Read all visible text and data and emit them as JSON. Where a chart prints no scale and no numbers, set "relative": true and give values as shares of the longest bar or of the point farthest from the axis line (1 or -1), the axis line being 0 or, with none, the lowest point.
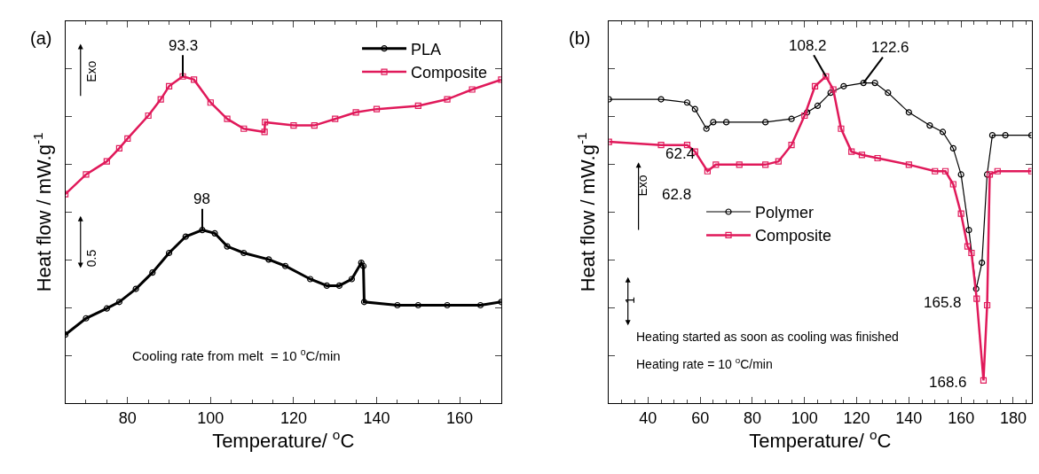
{
  "chart_data": [
    {
      "type": "line",
      "relative": true,
      "xlabel": "Temperature/ $^{o}$C",
      "ylabel": "Heat flow / mW.g$^{-1}$",
      "xlim": [
        65,
        170
      ],
      "xticks": [
        80,
        100,
        120,
        140,
        160
      ],
      "legend": "top right",
      "series": [
        {
          "name": "PLA",
          "color": "#000000",
          "marker": "circle",
          "x": [
            65,
            70,
            75,
            78,
            82,
            86,
            90,
            94,
            98,
            101,
            104,
            108,
            114,
            118,
            124,
            128,
            131,
            134,
            136.3,
            136.8,
            137,
            145,
            150,
            157,
            165,
            170
          ],
          "values": [
            0.21,
            0.26,
            0.29,
            0.31,
            0.35,
            0.4,
            0.46,
            0.51,
            0.53,
            0.52,
            0.48,
            0.46,
            0.44,
            0.42,
            0.38,
            0.36,
            0.36,
            0.38,
            0.43,
            0.42,
            0.31,
            0.3,
            0.3,
            0.3,
            0.3,
            0.31
          ]
        },
        {
          "name": "Composite",
          "color": "#e0195a",
          "marker": "square",
          "x": [
            65,
            70,
            75,
            78,
            80,
            85,
            88,
            90,
            93.3,
            96,
            100,
            104,
            108,
            113,
            113.1,
            120,
            125,
            130,
            135,
            140,
            150,
            157,
            163,
            170
          ],
          "values": [
            0.64,
            0.7,
            0.74,
            0.78,
            0.81,
            0.88,
            0.93,
            0.97,
            1.0,
            0.99,
            0.92,
            0.87,
            0.84,
            0.83,
            0.86,
            0.85,
            0.85,
            0.87,
            0.89,
            0.9,
            0.91,
            0.93,
            0.96,
            0.99
          ]
        }
      ],
      "annotations": [
        "(a)",
        "Exo",
        "0.5",
        "Cooling rate from melt  = 10 $^{o}$C/min",
        {
          "text": "93.3",
          "x": 93.3,
          "y": 1.0
        },
        {
          "text": "98",
          "x": 98,
          "y": 0.53
        }
      ]
    },
    {
      "type": "line",
      "relative": true,
      "xlabel": "Temperature/ $^{o}$C",
      "ylabel": "Heat flow / mW.g$^{-1}$",
      "xlim": [
        25,
        187
      ],
      "xticks": [
        40,
        60,
        80,
        100,
        120,
        140,
        160,
        180
      ],
      "legend": "left",
      "series": [
        {
          "name": "Polymer",
          "color": "#000000",
          "marker": "circle",
          "x": [
            25,
            45,
            55,
            58,
            62.4,
            65,
            70,
            85,
            95,
            101,
            105,
            110,
            115,
            122.6,
            127,
            132,
            140,
            148,
            153,
            157,
            160,
            163,
            165.8,
            168,
            170,
            172,
            177,
            187
          ],
          "values": [
            0.93,
            0.93,
            0.92,
            0.9,
            0.84,
            0.86,
            0.86,
            0.86,
            0.87,
            0.89,
            0.91,
            0.95,
            0.97,
            0.98,
            0.98,
            0.95,
            0.89,
            0.85,
            0.83,
            0.78,
            0.7,
            0.53,
            0.35,
            0.43,
            0.7,
            0.82,
            0.82,
            0.82
          ]
        },
        {
          "name": "Composite",
          "color": "#e0195a",
          "marker": "square",
          "x": [
            25,
            45,
            55,
            58,
            62.8,
            66,
            75,
            85,
            90,
            95,
            100,
            104,
            108.2,
            111,
            114,
            118,
            122,
            128,
            140,
            150,
            154,
            157,
            160,
            162.5,
            164,
            166,
            168.6,
            170,
            171,
            174,
            187
          ],
          "values": [
            0.8,
            0.79,
            0.79,
            0.77,
            0.71,
            0.73,
            0.73,
            0.73,
            0.74,
            0.79,
            0.88,
            0.97,
            1.0,
            0.96,
            0.84,
            0.77,
            0.76,
            0.75,
            0.73,
            0.71,
            0.71,
            0.67,
            0.58,
            0.48,
            0.46,
            0.32,
            0.07,
            0.3,
            0.7,
            0.71,
            0.71
          ]
        }
      ],
      "annotations": [
        "(b)",
        "Exo",
        "1",
        "Heating started as soon as cooling was finished",
        "Heating rate = 10 $^{o}$C/min",
        {
          "text": "108.2",
          "x": 108.2,
          "y": 1.0
        },
        {
          "text": "122.6",
          "x": 122.6,
          "y": 0.98
        },
        {
          "text": "62.4",
          "x": 62.4,
          "y": 0.84
        },
        {
          "text": "62.8",
          "x": 62.8,
          "y": 0.71
        },
        {
          "text": "165.8",
          "x": 165.8,
          "y": 0.35
        },
        {
          "text": "168.6",
          "x": 168.6,
          "y": 0.07
        }
      ]
    }
  ]
}
